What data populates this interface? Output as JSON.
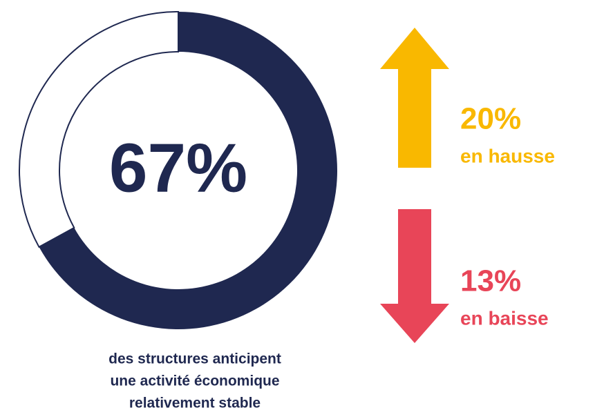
{
  "chart_data": {
    "type": "donut",
    "values": [
      67
    ],
    "value_labels": [
      "67%"
    ],
    "color": "#1f2850",
    "caption": [
      "des structures anticipent",
      "une activité économique",
      "relativement stable"
    ]
  },
  "indicators": [
    {
      "value": 20,
      "value_label": "20%",
      "text": "en hausse",
      "color": "#f9b800",
      "direction": "up"
    },
    {
      "value": 13,
      "value_label": "13%",
      "text": "en baisse",
      "color": "#e84558",
      "direction": "down"
    }
  ]
}
